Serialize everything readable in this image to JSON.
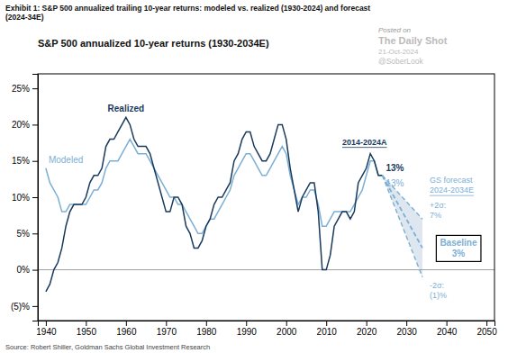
{
  "chart_data": {
    "type": "line",
    "title": "S&P 500 annualized 10-year returns (1930-2034E)",
    "caption": "Exhibit 1: S&P 500 annualized trailing 10-year returns: modeled vs. realized (1930-2024) and forecast\n(2024-34E)",
    "source": "Source: Robert Shiller, Goldman Sachs Global Investment Research",
    "watermarks": [
      "Posted on",
      "The Daily Shot",
      "21-Oct-2024",
      "@SoberLook"
    ],
    "xlim": [
      1938,
      2052
    ],
    "ylim": [
      -0.07,
      0.27
    ],
    "xticks": [
      1940,
      1950,
      1960,
      1970,
      1980,
      1990,
      2000,
      2010,
      2020,
      2030,
      2040,
      2050
    ],
    "yticks": [
      {
        "value": -0.05,
        "label": "(5)%"
      },
      {
        "value": 0.0,
        "label": "0%"
      },
      {
        "value": 0.05,
        "label": "5%"
      },
      {
        "value": 0.1,
        "label": "10%"
      },
      {
        "value": 0.15,
        "label": "15%"
      },
      {
        "value": 0.2,
        "label": "20%"
      },
      {
        "value": 0.25,
        "label": "25%"
      }
    ],
    "grid": false,
    "x": [
      1940,
      1941,
      1942,
      1943,
      1944,
      1945,
      1946,
      1947,
      1948,
      1949,
      1950,
      1951,
      1952,
      1953,
      1954,
      1955,
      1956,
      1957,
      1958,
      1959,
      1960,
      1961,
      1962,
      1963,
      1964,
      1965,
      1966,
      1967,
      1968,
      1969,
      1970,
      1971,
      1972,
      1973,
      1974,
      1975,
      1976,
      1977,
      1978,
      1979,
      1980,
      1981,
      1982,
      1983,
      1984,
      1985,
      1986,
      1987,
      1988,
      1989,
      1990,
      1991,
      1992,
      1993,
      1994,
      1995,
      1996,
      1997,
      1998,
      1999,
      2000,
      2001,
      2002,
      2003,
      2004,
      2005,
      2006,
      2007,
      2008,
      2009,
      2010,
      2011,
      2012,
      2013,
      2014,
      2015,
      2016,
      2017,
      2018,
      2019,
      2020,
      2021,
      2022,
      2023,
      2024
    ],
    "series": [
      {
        "name": "Modeled",
        "color": "#7bafd4",
        "end_label": "13%",
        "values": [
          0.14,
          0.12,
          0.11,
          0.1,
          0.08,
          0.08,
          0.09,
          0.09,
          0.09,
          0.09,
          0.09,
          0.1,
          0.11,
          0.11,
          0.12,
          0.14,
          0.15,
          0.15,
          0.15,
          0.16,
          0.17,
          0.18,
          0.17,
          0.16,
          0.16,
          0.16,
          0.15,
          0.14,
          0.13,
          0.12,
          0.11,
          0.1,
          0.1,
          0.09,
          0.09,
          0.08,
          0.07,
          0.06,
          0.05,
          0.05,
          0.06,
          0.07,
          0.07,
          0.08,
          0.09,
          0.1,
          0.11,
          0.13,
          0.14,
          0.15,
          0.16,
          0.16,
          0.15,
          0.14,
          0.13,
          0.13,
          0.14,
          0.15,
          0.16,
          0.17,
          0.16,
          0.13,
          0.11,
          0.09,
          0.1,
          0.1,
          0.11,
          0.11,
          0.09,
          0.06,
          0.06,
          0.07,
          0.08,
          0.08,
          0.08,
          0.08,
          0.08,
          0.09,
          0.1,
          0.11,
          0.13,
          0.15,
          0.15,
          0.13,
          0.13
        ]
      },
      {
        "name": "Realized",
        "color": "#1a3a5c",
        "end_label": "13%",
        "period_label": "2014-2024A",
        "values": [
          -0.03,
          -0.02,
          0.0,
          0.01,
          0.03,
          0.06,
          0.08,
          0.09,
          0.09,
          0.09,
          0.1,
          0.12,
          0.13,
          0.13,
          0.14,
          0.17,
          0.18,
          0.18,
          0.19,
          0.2,
          0.21,
          0.2,
          0.18,
          0.17,
          0.17,
          0.17,
          0.16,
          0.14,
          0.12,
          0.1,
          0.08,
          0.08,
          0.1,
          0.1,
          0.09,
          0.06,
          0.05,
          0.03,
          0.03,
          0.04,
          0.06,
          0.07,
          0.09,
          0.1,
          0.1,
          0.11,
          0.12,
          0.15,
          0.16,
          0.18,
          0.19,
          0.19,
          0.17,
          0.16,
          0.15,
          0.15,
          0.16,
          0.18,
          0.2,
          0.2,
          0.18,
          0.14,
          0.11,
          0.08,
          0.1,
          0.11,
          0.12,
          0.12,
          0.08,
          0.0,
          0.0,
          0.02,
          0.06,
          0.07,
          0.08,
          0.08,
          0.07,
          0.08,
          0.12,
          0.13,
          0.14,
          0.16,
          0.15,
          0.13,
          0.13
        ]
      }
    ],
    "forecast": {
      "x": [
        2024,
        2034
      ],
      "baseline": [
        0.13,
        0.03
      ],
      "upper": [
        0.13,
        0.07
      ],
      "lower": [
        0.13,
        -0.01
      ],
      "color": "#7bafd4",
      "fill_color": "#d0dce8",
      "line_style": "dashed",
      "label": "GS forecast\n2024-2034E",
      "baseline_label": "Baseline\n3%",
      "upper_label": "+2σ:\n7%",
      "lower_label": "-2σ:\n(1)%"
    }
  }
}
